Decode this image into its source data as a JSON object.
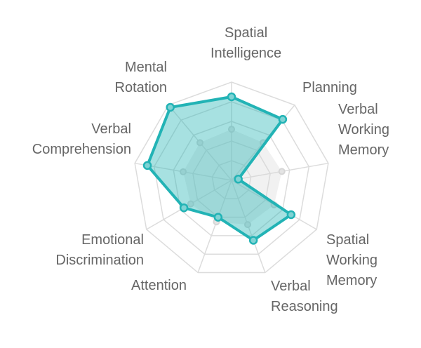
{
  "chart_data": {
    "type": "radar",
    "categories": [
      "Spatial Intelligence",
      "Planning",
      "Verbal Working Memory",
      "Spatial Working Memory",
      "Verbal Reasoning",
      "Attention",
      "Emotional Discrimination",
      "Verbal Comprehension",
      "Mental Rotation"
    ],
    "series": [
      {
        "color": "#d6d6d6",
        "values": [
          52,
          50,
          52,
          50,
          48,
          45,
          48,
          50,
          50
        ]
      },
      {
        "color": "#22b3b5",
        "values": [
          85,
          81,
          7,
          70,
          65,
          40,
          56,
          87,
          97
        ]
      }
    ],
    "ylim": [
      0,
      100
    ],
    "yticks": [
      20,
      40,
      60,
      80,
      100
    ],
    "grid": true
  }
}
